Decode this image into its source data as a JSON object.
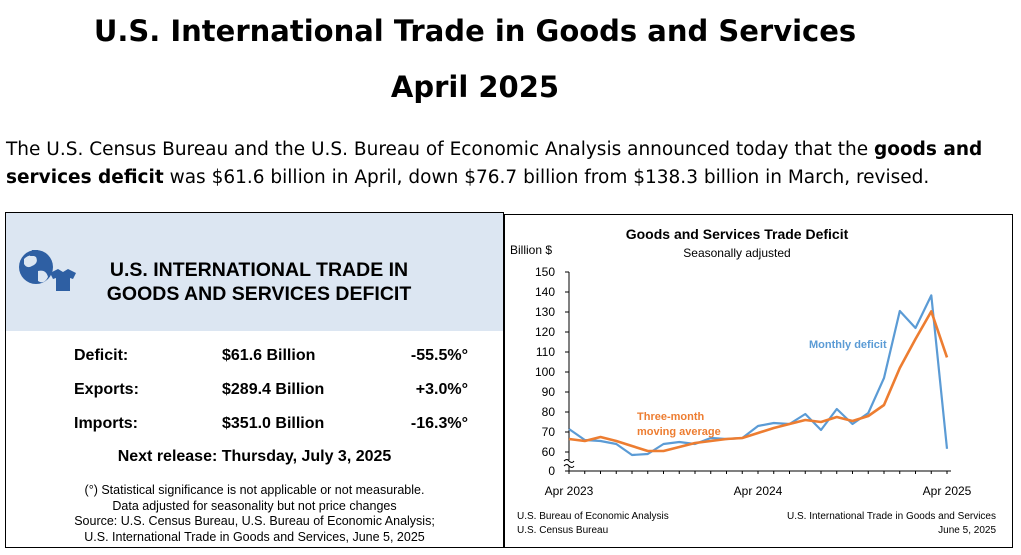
{
  "header": {
    "title": "U.S. International Trade in Goods and Services",
    "subtitle": "April 2025",
    "intro_before_bold": "The U.S. Census Bureau and the U.S. Bureau of Economic Analysis announced today that the ",
    "intro_bold": "goods and services deficit",
    "intro_after_bold": " was $61.6 billion in April, down $76.7 billion from $138.3 billion in March, revised."
  },
  "summary": {
    "heading_line1": "U.S. INTERNATIONAL TRADE IN",
    "heading_line2": "GOODS AND SERVICES DEFICIT",
    "rows": [
      {
        "label": "Deficit:",
        "value": "$61.6 Billion",
        "change": "-55.5%°"
      },
      {
        "label": "Exports:",
        "value": "$289.4 Billion",
        "change": "+3.0%°"
      },
      {
        "label": "Imports:",
        "value": "$351.0 Billion",
        "change": "-16.3%°"
      }
    ],
    "next_release": "Next release: Thursday, July 3, 2025",
    "note1": "(°) Statistical significance is not applicable or not measurable.",
    "note2": "Data adjusted for seasonality but not price changes",
    "note3": "Source: U.S. Census Bureau, U.S. Bureau of Economic Analysis;",
    "note4": "U.S. International Trade in Goods and Services, June 5, 2025",
    "colors": {
      "panel_bg": "#dce6f2",
      "icon": "#2e5fa3"
    }
  },
  "chart_data": {
    "type": "line",
    "title": "Goods and Services Trade Deficit",
    "subtitle": "Seasonally adjusted",
    "ylabel": "Billion $",
    "ylim": [
      0,
      150
    ],
    "y_break": [
      0,
      60
    ],
    "yticks": [
      0,
      60,
      70,
      80,
      90,
      100,
      110,
      120,
      130,
      140,
      150
    ],
    "x": [
      "2023-04",
      "2023-05",
      "2023-06",
      "2023-07",
      "2023-08",
      "2023-09",
      "2023-10",
      "2023-11",
      "2023-12",
      "2024-01",
      "2024-02",
      "2024-03",
      "2024-04",
      "2024-05",
      "2024-06",
      "2024-07",
      "2024-08",
      "2024-09",
      "2024-10",
      "2024-11",
      "2024-12",
      "2025-01",
      "2025-02",
      "2025-03",
      "2025-04"
    ],
    "xtick_labels": [
      "Apr 2023",
      "Apr 2024",
      "Apr 2025"
    ],
    "xtick_index": [
      0,
      12,
      24
    ],
    "series": [
      {
        "name": "Monthly deficit",
        "color": "#5b9bd5",
        "values": [
          71.5,
          66,
          65.5,
          64,
          58.5,
          59,
          64,
          65,
          64,
          67,
          66.5,
          67,
          73,
          74.5,
          74,
          79,
          71,
          81.5,
          74,
          79.5,
          97,
          130.5,
          122,
          138.3,
          61.6
        ]
      },
      {
        "name": "Three-month moving average",
        "color": "#ed7d31",
        "values": [
          66.5,
          65.5,
          67.5,
          65.5,
          63,
          60.5,
          60.5,
          62.5,
          64.5,
          65.5,
          66.5,
          67,
          69.5,
          72,
          74,
          76,
          75,
          77.5,
          75.5,
          78,
          83.5,
          102,
          116.5,
          130.3,
          107.3
        ]
      }
    ],
    "source_left1": "U.S. Bureau of Economic Analysis",
    "source_left2": "U.S. Census Bureau",
    "source_right1": "U.S. International Trade in Goods and Services",
    "source_right2": "June 5, 2025",
    "grid": false,
    "legend": "inline labels"
  }
}
